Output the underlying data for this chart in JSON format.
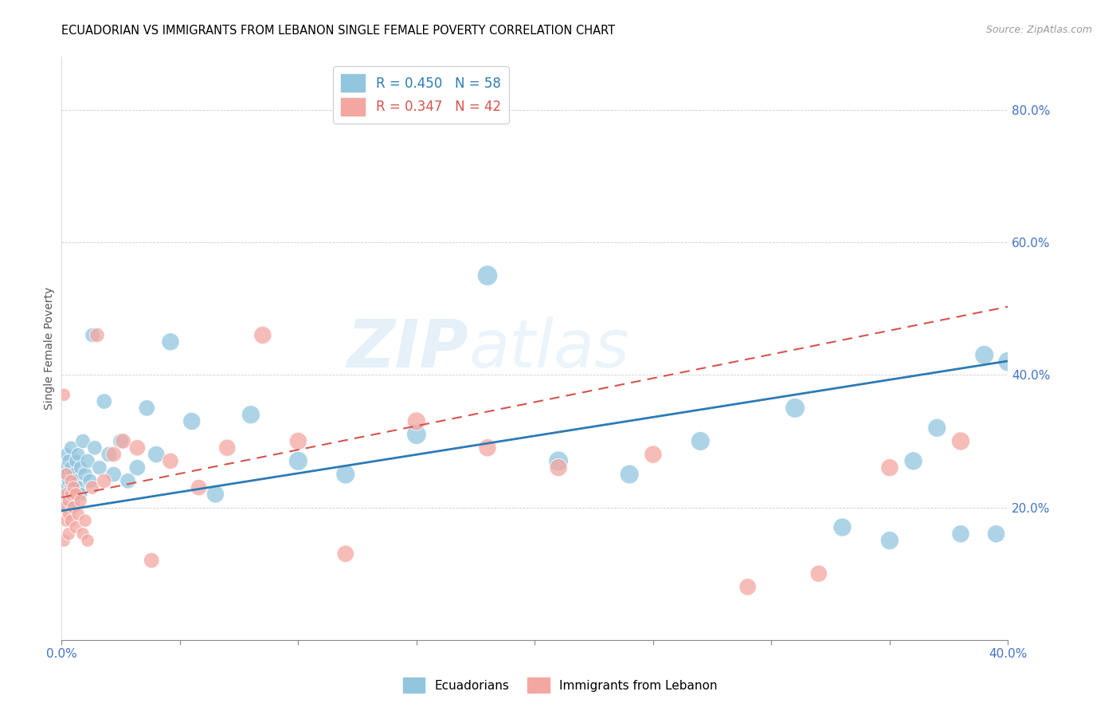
{
  "title": "ECUADORIAN VS IMMIGRANTS FROM LEBANON SINGLE FEMALE POVERTY CORRELATION CHART",
  "source": "Source: ZipAtlas.com",
  "ylabel": "Single Female Poverty",
  "right_yticks": [
    "20.0%",
    "40.0%",
    "60.0%",
    "80.0%"
  ],
  "right_ytick_vals": [
    0.2,
    0.4,
    0.6,
    0.8
  ],
  "xlim": [
    0.0,
    0.4
  ],
  "ylim": [
    0.0,
    0.88
  ],
  "blue_color": "#92c5de",
  "pink_color": "#f4a6a0",
  "blue_line_color": "#2c7bb6",
  "pink_line_color": "#d7534e",
  "axis_color": "#4472C4",
  "watermark_zip": "ZIP",
  "watermark_atlas": "atlas",
  "blue_r": 0.45,
  "blue_n": 58,
  "pink_r": 0.347,
  "pink_n": 42,
  "ecuadorians_x": [
    0.001,
    0.001,
    0.001,
    0.002,
    0.002,
    0.002,
    0.002,
    0.003,
    0.003,
    0.003,
    0.003,
    0.004,
    0.004,
    0.004,
    0.005,
    0.005,
    0.005,
    0.006,
    0.006,
    0.007,
    0.007,
    0.008,
    0.008,
    0.009,
    0.01,
    0.011,
    0.012,
    0.013,
    0.014,
    0.016,
    0.018,
    0.02,
    0.022,
    0.025,
    0.028,
    0.032,
    0.036,
    0.04,
    0.046,
    0.055,
    0.065,
    0.08,
    0.1,
    0.12,
    0.15,
    0.18,
    0.21,
    0.24,
    0.27,
    0.31,
    0.33,
    0.35,
    0.36,
    0.37,
    0.38,
    0.39,
    0.395,
    0.4
  ],
  "ecuadorians_y": [
    0.24,
    0.22,
    0.26,
    0.23,
    0.21,
    0.25,
    0.28,
    0.22,
    0.24,
    0.27,
    0.2,
    0.23,
    0.26,
    0.29,
    0.22,
    0.25,
    0.21,
    0.24,
    0.27,
    0.23,
    0.28,
    0.26,
    0.22,
    0.3,
    0.25,
    0.27,
    0.24,
    0.46,
    0.29,
    0.26,
    0.36,
    0.28,
    0.25,
    0.3,
    0.24,
    0.26,
    0.35,
    0.28,
    0.45,
    0.33,
    0.22,
    0.34,
    0.27,
    0.25,
    0.31,
    0.55,
    0.27,
    0.25,
    0.3,
    0.35,
    0.17,
    0.15,
    0.27,
    0.32,
    0.16,
    0.43,
    0.16,
    0.42
  ],
  "ecuadorians_size": [
    30,
    30,
    30,
    35,
    35,
    35,
    35,
    40,
    40,
    40,
    40,
    40,
    40,
    40,
    40,
    40,
    40,
    40,
    40,
    40,
    40,
    40,
    40,
    45,
    45,
    45,
    45,
    45,
    45,
    45,
    50,
    50,
    50,
    50,
    50,
    55,
    55,
    60,
    65,
    65,
    65,
    70,
    75,
    75,
    80,
    85,
    80,
    75,
    75,
    80,
    70,
    70,
    70,
    70,
    65,
    75,
    65,
    80
  ],
  "lebanon_x": [
    0.001,
    0.001,
    0.001,
    0.002,
    0.002,
    0.002,
    0.003,
    0.003,
    0.003,
    0.004,
    0.004,
    0.004,
    0.005,
    0.005,
    0.006,
    0.006,
    0.007,
    0.008,
    0.009,
    0.01,
    0.011,
    0.013,
    0.015,
    0.018,
    0.022,
    0.026,
    0.032,
    0.038,
    0.046,
    0.058,
    0.07,
    0.085,
    0.1,
    0.12,
    0.15,
    0.18,
    0.21,
    0.25,
    0.29,
    0.32,
    0.35,
    0.38
  ],
  "lebanon_y": [
    0.37,
    0.2,
    0.15,
    0.22,
    0.18,
    0.25,
    0.21,
    0.19,
    0.16,
    0.24,
    0.22,
    0.18,
    0.23,
    0.2,
    0.17,
    0.22,
    0.19,
    0.21,
    0.16,
    0.18,
    0.15,
    0.23,
    0.46,
    0.24,
    0.28,
    0.3,
    0.29,
    0.12,
    0.27,
    0.23,
    0.29,
    0.46,
    0.3,
    0.13,
    0.33,
    0.29,
    0.26,
    0.28,
    0.08,
    0.1,
    0.26,
    0.3
  ],
  "lebanon_size": [
    35,
    35,
    35,
    35,
    35,
    35,
    35,
    35,
    35,
    35,
    35,
    35,
    35,
    35,
    35,
    35,
    35,
    35,
    35,
    35,
    35,
    40,
    45,
    45,
    50,
    50,
    55,
    50,
    55,
    55,
    60,
    65,
    65,
    60,
    70,
    65,
    65,
    65,
    60,
    60,
    65,
    70
  ],
  "blue_intercept": 0.195,
  "blue_slope": 0.565,
  "pink_intercept": 0.215,
  "pink_slope": 0.72
}
